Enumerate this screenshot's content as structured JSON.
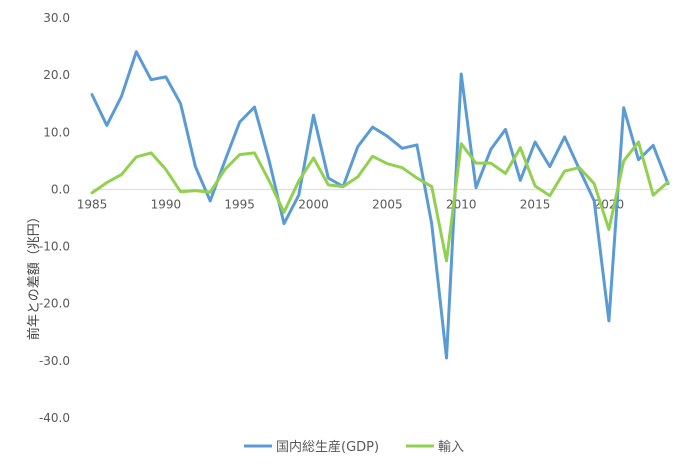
{
  "chart_data": {
    "type": "line",
    "title": "",
    "xlabel": "",
    "ylabel": "前年との差額（兆円）",
    "ylim": [
      -40,
      30
    ],
    "yticks": [
      "30.0",
      "20.0",
      "10.0",
      "0.0",
      "-10.0",
      "-20.0",
      "-30.0",
      "-40.0"
    ],
    "xlim": [
      1985,
      2024
    ],
    "xticks": [
      "1985",
      "1990",
      "1995",
      "2000",
      "2005",
      "2010",
      "2015",
      "2020"
    ],
    "grid": false,
    "legend_position": "bottom",
    "x": [
      1985,
      1986,
      1987,
      1988,
      1989,
      1990,
      1991,
      1992,
      1993,
      1994,
      1995,
      1996,
      1997,
      1998,
      1999,
      2000,
      2001,
      2002,
      2003,
      2004,
      2005,
      2006,
      2007,
      2008,
      2009,
      2010,
      2011,
      2012,
      2013,
      2014,
      2015,
      2016,
      2017,
      2018,
      2019,
      2020,
      2021,
      2022,
      2023,
      2024
    ],
    "series": [
      {
        "name": "国内総生産(GDP)",
        "color": "#5B9BD5",
        "values": [
          16.6,
          11.2,
          16.3,
          24.1,
          19.2,
          19.7,
          15.0,
          4.0,
          -2.0,
          5.0,
          11.8,
          14.4,
          5.0,
          -6.0,
          -1.0,
          13.0,
          2.0,
          0.5,
          7.5,
          10.9,
          9.3,
          7.2,
          7.8,
          -6.0,
          -29.5,
          20.2,
          0.3,
          7.0,
          10.5,
          1.6,
          8.3,
          4.0,
          9.2,
          3.5,
          -2.0,
          -23.0,
          14.3,
          5.2,
          7.7,
          1.0
        ]
      },
      {
        "name": "輸入",
        "color": "#92D050",
        "values": [
          -0.6,
          1.2,
          2.6,
          5.7,
          6.4,
          3.5,
          -0.4,
          -0.2,
          -0.5,
          3.5,
          6.1,
          6.4,
          1.5,
          -4.0,
          1.5,
          5.5,
          0.8,
          0.5,
          2.2,
          5.8,
          4.5,
          3.8,
          2.0,
          0.5,
          -12.5,
          8.0,
          4.6,
          4.6,
          2.8,
          7.3,
          0.6,
          -1.1,
          3.2,
          3.8,
          1.0,
          -7.0,
          5.0,
          8.3,
          -1.0,
          1.3
        ]
      }
    ]
  }
}
